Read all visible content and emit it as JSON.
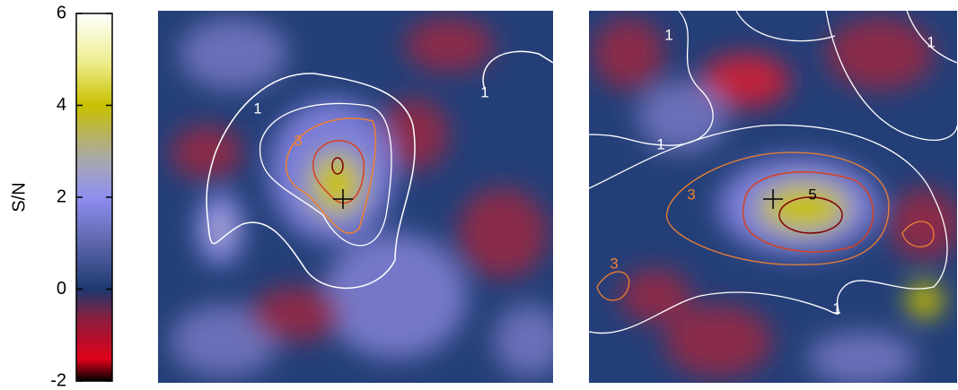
{
  "chart_data": {
    "type": "heatmap",
    "colorbar": {
      "label": "S/N",
      "ylim": [
        -2,
        6
      ],
      "yticks": [
        -2,
        0,
        2,
        4,
        6
      ]
    },
    "panels": [
      {
        "contour_labels": [
          1,
          3,
          1
        ]
      },
      {
        "contour_labels": [
          1,
          1,
          1,
          3,
          5,
          3,
          1
        ]
      }
    ]
  }
}
